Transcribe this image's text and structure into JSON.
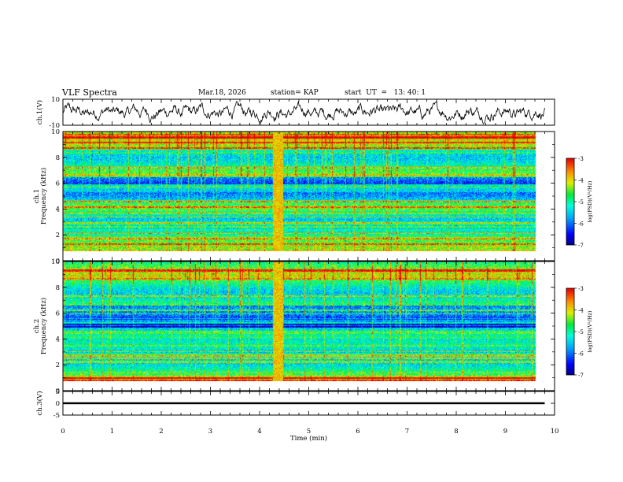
{
  "header": {
    "title": "VLF Spectra",
    "date": "Mar.18, 2026",
    "station": "station= KAP",
    "start_ut": "start  UT  =   13: 40: 1"
  },
  "chart_data": [
    {
      "type": "line",
      "name": "ch1-waveform",
      "ylabel": "ch.1(V)",
      "ylim": [
        -10,
        10
      ],
      "y_ticks": [
        "10",
        "-10"
      ],
      "xlim": [
        0,
        10
      ],
      "series": [
        {
          "name": "ch.1",
          "x_range": [
            0,
            9.8
          ],
          "approx_amplitude_V": 6
        }
      ]
    },
    {
      "type": "heatmap",
      "name": "ch1-spectrogram",
      "ylabel": "ch.1\nFrequency (kHz)",
      "ylabel_lines": [
        "ch.1",
        "Frequency (kHz)"
      ],
      "ylim": [
        0,
        10
      ],
      "y_ticks": [
        "0",
        "2",
        "4",
        "6",
        "8",
        "10"
      ],
      "xlim": [
        0,
        10
      ],
      "data_x_range": [
        0,
        9.8
      ],
      "colorbar": {
        "label": "log(PSD)(V²/Hz)",
        "range": [
          -7,
          -3
        ],
        "ticks": [
          "-3",
          "-4",
          "-5",
          "-6",
          "-7"
        ]
      },
      "features": {
        "broadband_burst_min": [
          4.35,
          4.55
        ],
        "low_power_band_kHz": [
          5.6,
          6.2
        ]
      }
    },
    {
      "type": "heatmap",
      "name": "ch2-spectrogram",
      "ylabel": "ch.2\nFrequency (kHz)",
      "ylabel_lines": [
        "ch.2",
        "Frequency (kHz)"
      ],
      "ylim": [
        0,
        10
      ],
      "y_ticks": [
        "0",
        "2",
        "4",
        "6",
        "8",
        "10"
      ],
      "xlim": [
        0,
        10
      ],
      "data_x_range": [
        0,
        9.8
      ],
      "colorbar": {
        "label": "log(PSD)(V²/Hz)",
        "range": [
          -7,
          -3
        ],
        "ticks": [
          "-3",
          "-4",
          "-5",
          "-6",
          "-7"
        ]
      },
      "features": {
        "broadband_burst_min": [
          4.35,
          4.55
        ],
        "low_power_band_kHz": [
          4.5,
          6.5
        ]
      }
    },
    {
      "type": "line",
      "name": "ch3-signal",
      "ylabel": "ch.3(V)",
      "ylim": [
        -5,
        5
      ],
      "y_ticks": [
        "5",
        "0",
        "-5"
      ],
      "xlim": [
        0,
        10
      ],
      "series": [
        {
          "name": "ch.3",
          "x_range": [
            0,
            9.8
          ],
          "level_V": 0,
          "band_V": [
            -0.4,
            0.4
          ]
        }
      ]
    }
  ],
  "x_axis": {
    "label": "Time  (min)",
    "ticks": [
      "0",
      "1",
      "2",
      "3",
      "4",
      "5",
      "6",
      "7",
      "8",
      "9",
      "10"
    ]
  }
}
